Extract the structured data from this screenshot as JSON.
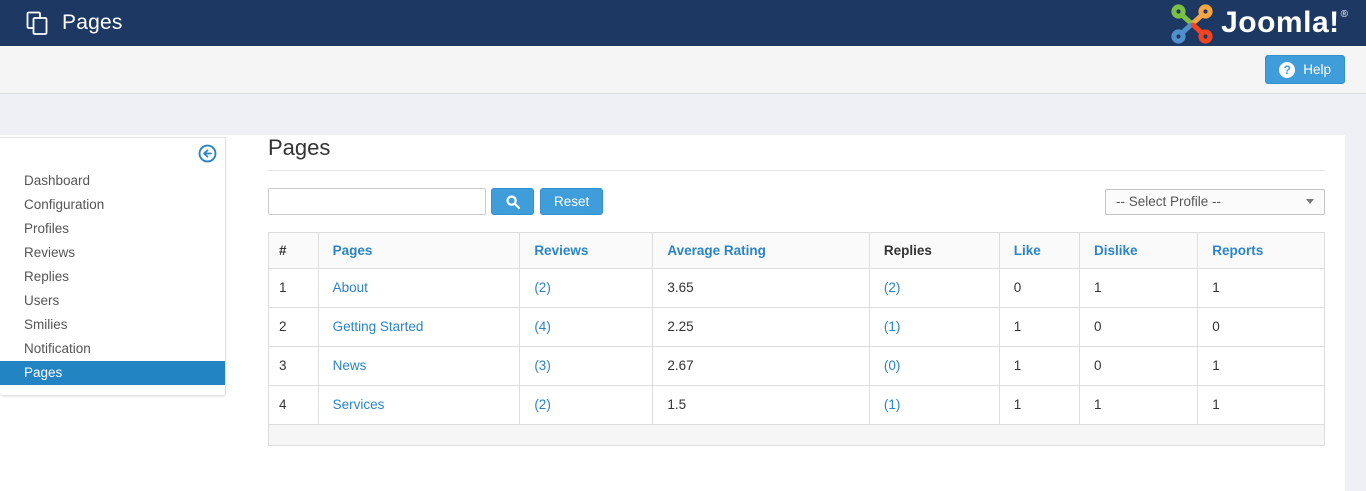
{
  "colors": {
    "topbar_navy": "#1c3863",
    "button_blue": "#3f9eda",
    "active_item_blue": "#2384c4",
    "link_blue": "#2a84c5",
    "page_background": "#eef0f5",
    "logo_green": "#7AC143",
    "logo_orange": "#F9A541",
    "logo_red": "#F44321",
    "logo_blue": "#5091CD"
  },
  "header": {
    "title": "Pages",
    "logo_text": "Joomla!",
    "logo_reg": "®"
  },
  "toolbar": {
    "help_label": "Help",
    "help_icon_glyph": "?"
  },
  "sidebar": {
    "items": [
      {
        "label": "Dashboard",
        "active": false
      },
      {
        "label": "Configuration",
        "active": false
      },
      {
        "label": "Profiles",
        "active": false
      },
      {
        "label": "Reviews",
        "active": false
      },
      {
        "label": "Replies",
        "active": false
      },
      {
        "label": "Users",
        "active": false
      },
      {
        "label": "Smilies",
        "active": false
      },
      {
        "label": "Notification",
        "active": false
      },
      {
        "label": "Pages",
        "active": true
      }
    ]
  },
  "main": {
    "page_title": "Pages",
    "filters": {
      "search_value": "",
      "reset_label": "Reset",
      "profile_select_value": "-- Select Profile --"
    },
    "table": {
      "columns": [
        {
          "key": "num",
          "label": "#",
          "sortable": false
        },
        {
          "key": "pages",
          "label": "Pages",
          "sortable": true
        },
        {
          "key": "reviews",
          "label": "Reviews",
          "sortable": true
        },
        {
          "key": "average-rating",
          "label": "Average Rating",
          "sortable": true
        },
        {
          "key": "replies",
          "label": "Replies",
          "sortable": false
        },
        {
          "key": "like",
          "label": "Like",
          "sortable": true
        },
        {
          "key": "dislike",
          "label": "Dislike",
          "sortable": true
        },
        {
          "key": "reports",
          "label": "Reports",
          "sortable": true
        }
      ],
      "rows": [
        {
          "num": "1",
          "page": "About",
          "reviews": "(2)",
          "average_rating": "3.65",
          "replies": "(2)",
          "like": "0",
          "dislike": "1",
          "reports": "1"
        },
        {
          "num": "2",
          "page": "Getting Started",
          "reviews": "(4)",
          "average_rating": "2.25",
          "replies": "(1)",
          "like": "1",
          "dislike": "0",
          "reports": "0"
        },
        {
          "num": "3",
          "page": "News",
          "reviews": "(3)",
          "average_rating": "2.67",
          "replies": "(0)",
          "like": "1",
          "dislike": "0",
          "reports": "1"
        },
        {
          "num": "4",
          "page": "Services",
          "reviews": "(2)",
          "average_rating": "1.5",
          "replies": "(1)",
          "like": "1",
          "dislike": "1",
          "reports": "1"
        }
      ]
    }
  }
}
